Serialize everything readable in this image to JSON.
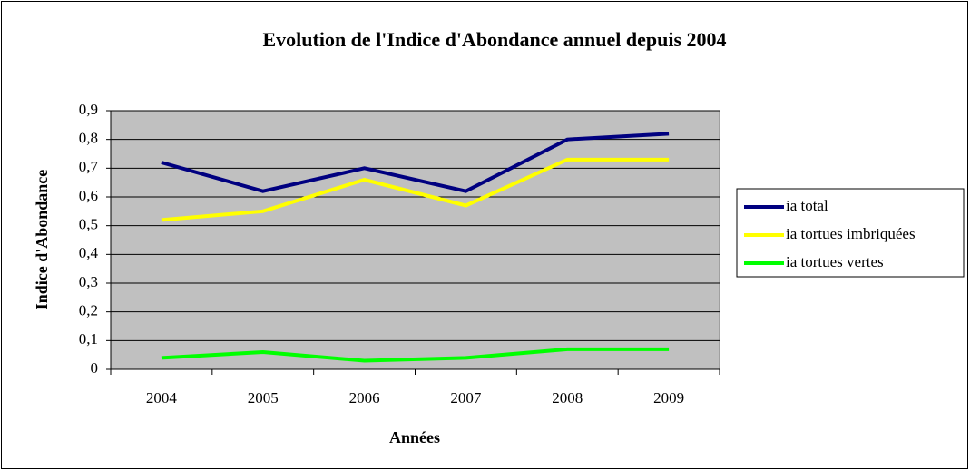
{
  "chart_data": {
    "type": "line",
    "title": "Evolution de l'Indice d'Abondance annuel depuis 2004",
    "x_label": "Années",
    "y_label": "Indice d'Abondance",
    "categories": [
      "2004",
      "2005",
      "2006",
      "2007",
      "2008",
      "2009"
    ],
    "series": [
      {
        "name": "ia total",
        "color": "#000080",
        "values": [
          0.72,
          0.62,
          0.7,
          0.62,
          0.8,
          0.82
        ]
      },
      {
        "name": "ia tortues imbriquées",
        "color": "#ffff00",
        "values": [
          0.52,
          0.55,
          0.66,
          0.57,
          0.73,
          0.73
        ]
      },
      {
        "name": "ia tortues vertes",
        "color": "#00ff00",
        "values": [
          0.04,
          0.06,
          0.03,
          0.04,
          0.07,
          0.07
        ]
      }
    ],
    "ylim": [
      0,
      0.9
    ],
    "yticks": [
      0,
      {
        "value": 0.1,
        "label": "0,1"
      },
      {
        "value": 0.2,
        "label": "0,2"
      },
      {
        "value": 0.3,
        "label": "0,3"
      },
      {
        "value": 0.4,
        "label": "0,4"
      },
      {
        "value": 0.5,
        "label": "0,5"
      },
      {
        "value": 0.6,
        "label": "0,6"
      },
      {
        "value": 0.7,
        "label": "0,7"
      },
      {
        "value": 0.8,
        "label": "0,8"
      },
      {
        "value": 0.9,
        "label": "0,9"
      }
    ],
    "grid": true,
    "legend": "right"
  }
}
